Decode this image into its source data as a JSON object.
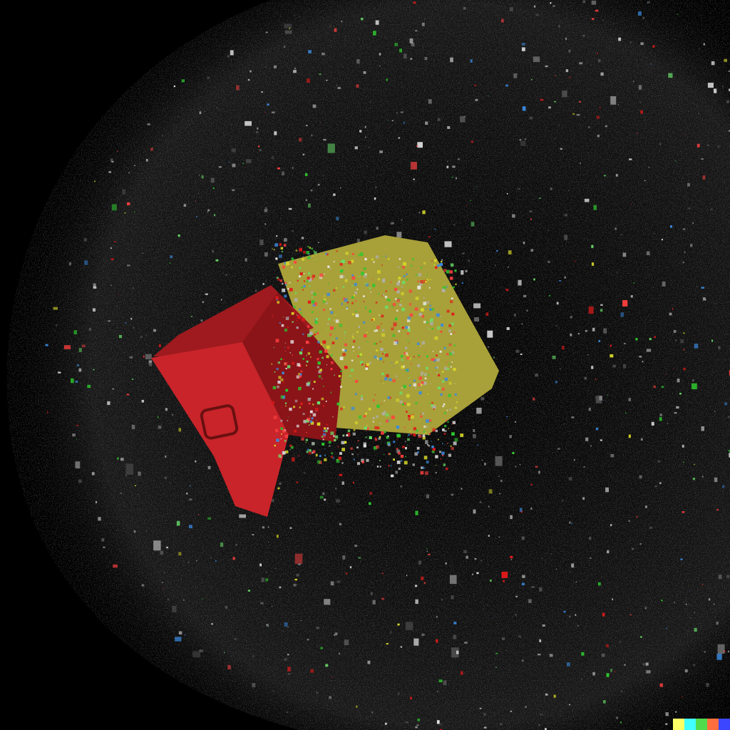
{
  "scene": {
    "subject": "exploding-cube",
    "background_color": "#000000",
    "dust_color": "#9a9a9a",
    "cube_colors": {
      "front": "#c8242a",
      "side": "#8a1418",
      "top": "#9e1a1e",
      "right_face": "#a8a038"
    },
    "particle_colors": [
      "#e01a1a",
      "#2ec82e",
      "#e8e8e8",
      "#d8d82a",
      "#3a8ae0",
      "#b0b0b0",
      "#ff4040",
      "#6ae06a"
    ]
  },
  "signature": {
    "colors": [
      "#ffff66",
      "#42ffff",
      "#51da4c",
      "#ff6e3c",
      "#3c46ff"
    ]
  }
}
